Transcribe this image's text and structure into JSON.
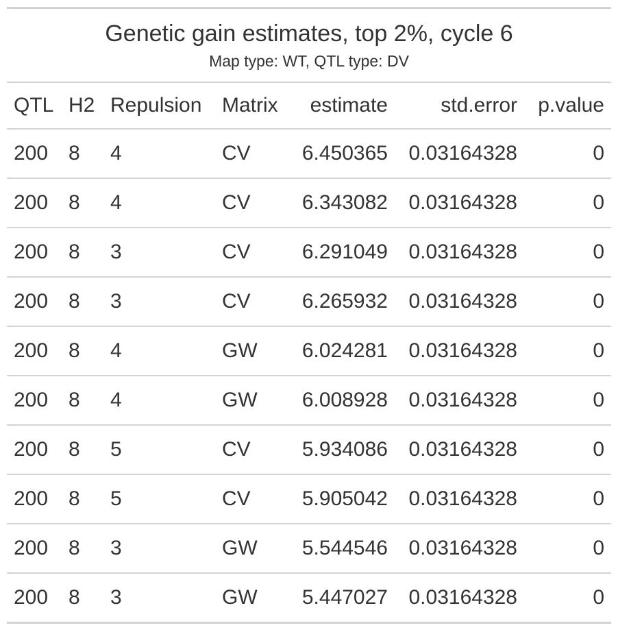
{
  "chart_data": {
    "type": "table",
    "title": "Genetic gain estimates, top 2%, cycle 6",
    "subtitle": "Map type: WT, QTL type: DV",
    "columns": [
      "QTL",
      "H2",
      "Repulsion",
      "Matrix",
      "estimate",
      "std.error",
      "p.value"
    ],
    "rows": [
      [
        "200",
        "8",
        "4",
        "CV",
        "6.450365",
        "0.03164328",
        "0"
      ],
      [
        "200",
        "8",
        "4",
        "CV",
        "6.343082",
        "0.03164328",
        "0"
      ],
      [
        "200",
        "8",
        "3",
        "CV",
        "6.291049",
        "0.03164328",
        "0"
      ],
      [
        "200",
        "8",
        "3",
        "CV",
        "6.265932",
        "0.03164328",
        "0"
      ],
      [
        "200",
        "8",
        "4",
        "GW",
        "6.024281",
        "0.03164328",
        "0"
      ],
      [
        "200",
        "8",
        "4",
        "GW",
        "6.008928",
        "0.03164328",
        "0"
      ],
      [
        "200",
        "8",
        "5",
        "CV",
        "5.934086",
        "0.03164328",
        "0"
      ],
      [
        "200",
        "8",
        "5",
        "CV",
        "5.905042",
        "0.03164328",
        "0"
      ],
      [
        "200",
        "8",
        "3",
        "GW",
        "5.544546",
        "0.03164328",
        "0"
      ],
      [
        "200",
        "8",
        "3",
        "GW",
        "5.447027",
        "0.03164328",
        "0"
      ]
    ],
    "column_align": [
      "left",
      "left",
      "left",
      "left",
      "right",
      "right",
      "right"
    ]
  },
  "colors": {
    "text": "#333333",
    "rule": "#d3d3d3",
    "background": "#ffffff"
  }
}
